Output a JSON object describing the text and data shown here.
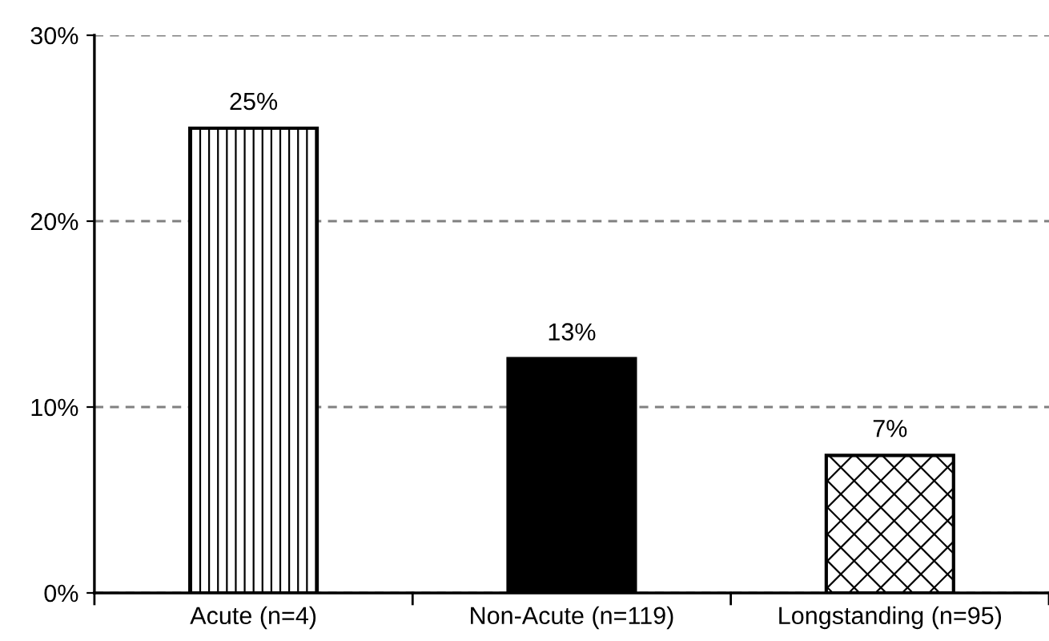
{
  "chart_data": {
    "type": "bar",
    "categories": [
      "Acute (n=4)",
      "Non-Acute (n=119)",
      "Longstanding (n=95)"
    ],
    "values": [
      25,
      12.6,
      7.4
    ],
    "value_labels": [
      "25%",
      "13%",
      "7%"
    ],
    "colors": [
      "#ffffff",
      "#000000",
      "#ffffff"
    ],
    "ylim": [
      0,
      30
    ],
    "yticks": [
      {
        "value": 0,
        "label": "0%"
      },
      {
        "value": 10,
        "label": "10%"
      },
      {
        "value": 20,
        "label": "20%"
      },
      {
        "value": 30,
        "label": "30%"
      }
    ],
    "grid": "y"
  }
}
